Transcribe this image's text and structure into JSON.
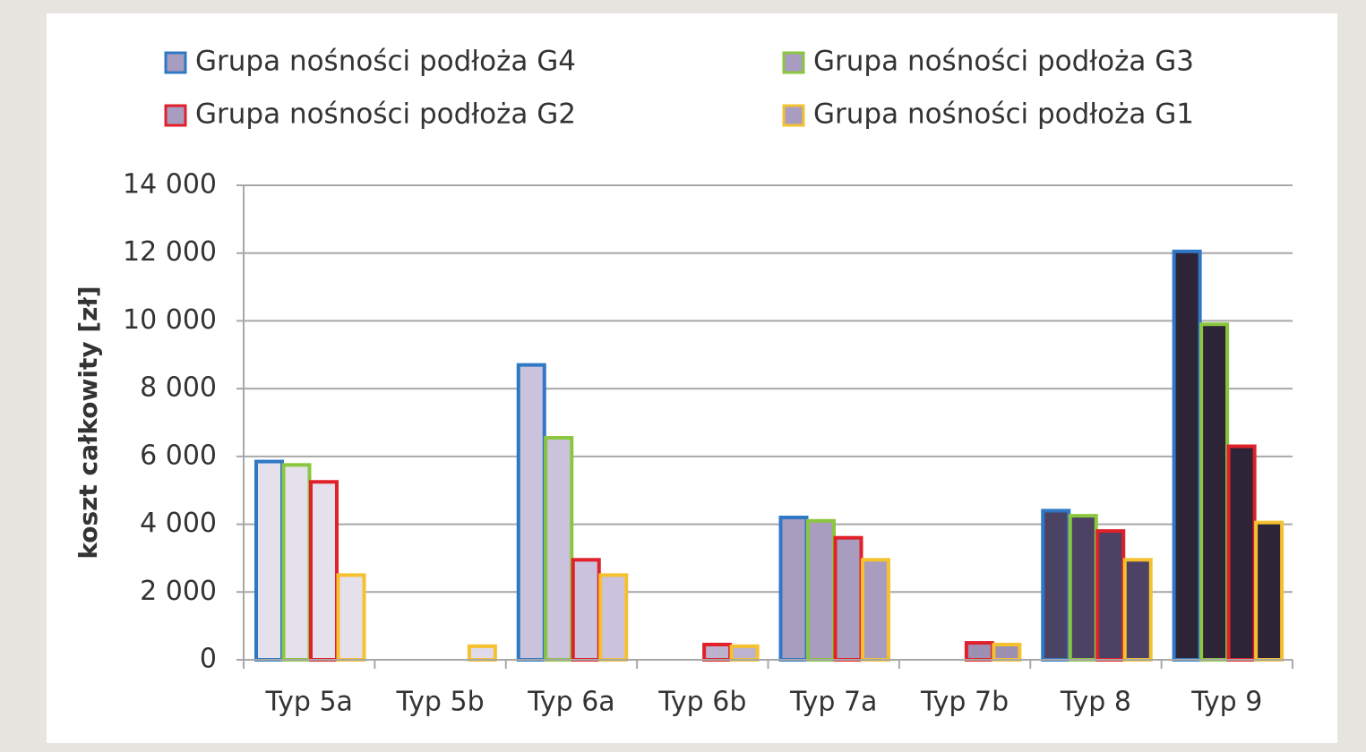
{
  "chart_data": {
    "type": "bar",
    "y_label": "koszt całkowity [zł]",
    "categories": [
      "Typ 5a",
      "Typ 5b",
      "Typ 6a",
      "Typ 6b",
      "Typ 7a",
      "Typ 7b",
      "Typ 8",
      "Typ 9"
    ],
    "category_fills": [
      "#e4e0ec",
      "#e0dbea",
      "#cbc3dd",
      "#bdb3d1",
      "#a99dbf",
      "#9d90b3",
      "#4c4264",
      "#2e2438"
    ],
    "series": [
      {
        "name": "Grupa nośności podłoża G4",
        "color": "#2f78c4",
        "values": [
          5850,
          null,
          8700,
          null,
          4200,
          null,
          4400,
          12050
        ]
      },
      {
        "name": "Grupa nośności podłoża G3",
        "color": "#8cc63f",
        "values": [
          5750,
          null,
          6550,
          null,
          4100,
          null,
          4250,
          9900
        ]
      },
      {
        "name": "Grupa nośności podłoża G2",
        "color": "#e0202a",
        "values": [
          5250,
          null,
          2950,
          450,
          3600,
          500,
          3800,
          6300
        ]
      },
      {
        "name": "Grupa nośności podłoża G1",
        "color": "#f5c12e",
        "values": [
          2500,
          400,
          2500,
          400,
          2950,
          450,
          2950,
          4050
        ]
      }
    ],
    "ylim": [
      0,
      14000
    ],
    "yticks": [
      0,
      {
        "value": 2000,
        "label": "2 000"
      },
      {
        "value": 4000,
        "label": "4 000"
      },
      {
        "value": 6000,
        "label": "6 000"
      },
      {
        "value": 8000,
        "label": "8 000"
      },
      {
        "value": 10000,
        "label": "10 000"
      },
      {
        "value": 12000,
        "label": "12 000"
      },
      {
        "value": 14000,
        "label": "14 000"
      }
    ],
    "grid": true
  }
}
